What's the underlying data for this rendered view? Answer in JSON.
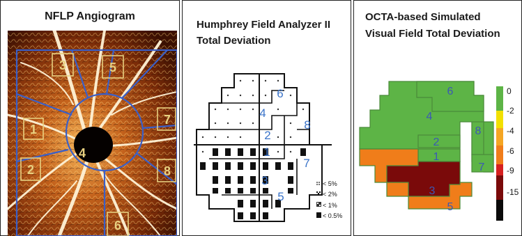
{
  "panels": {
    "nflp": {
      "title": "NFLP Angiogram",
      "sectors": [
        "1",
        "2",
        "3",
        "4",
        "5",
        "6",
        "7",
        "8"
      ]
    },
    "hfa": {
      "title_line1": "Humphrey Field Analyzer II",
      "title_line2": "Total Deviation",
      "sectors": [
        "1",
        "2",
        "3",
        "4",
        "5",
        "6",
        "7",
        "8"
      ],
      "legend": [
        {
          "symbol": "dots",
          "label": "< 5%"
        },
        {
          "symbol": "checker",
          "label": "< 2%"
        },
        {
          "symbol": "dense",
          "label": "< 1%"
        },
        {
          "symbol": "solid",
          "label": "< 0.5%"
        }
      ]
    },
    "octa": {
      "title_line1": "OCTA-based Simulated",
      "title_line2": "Visual Field Total Deviation",
      "sectors": [
        "1",
        "2",
        "3",
        "4",
        "5",
        "6",
        "7",
        "8"
      ],
      "sector_values": {
        "1": 0,
        "2": 0,
        "3": -15,
        "4": 0,
        "5": -6,
        "6": 0,
        "7": 0,
        "8": 0
      },
      "colorbar": [
        {
          "label": "0",
          "color": "#5db446"
        },
        {
          "label": "-2",
          "color": "#f2e000"
        },
        {
          "label": "-4",
          "color": "#f5a623"
        },
        {
          "label": "-6",
          "color": "#f07d1a"
        },
        {
          "label": "-9",
          "color": "#d62020"
        },
        {
          "label": "-15",
          "color": "#7a0a0a"
        },
        {
          "label": "",
          "color": "#0a0a0a"
        }
      ]
    }
  },
  "colors": {
    "sector_outline": "#3a5fc8",
    "sector_label": "#e8d080",
    "hfa_label": "#3b74c9",
    "octa_label": "#3b58b5"
  }
}
